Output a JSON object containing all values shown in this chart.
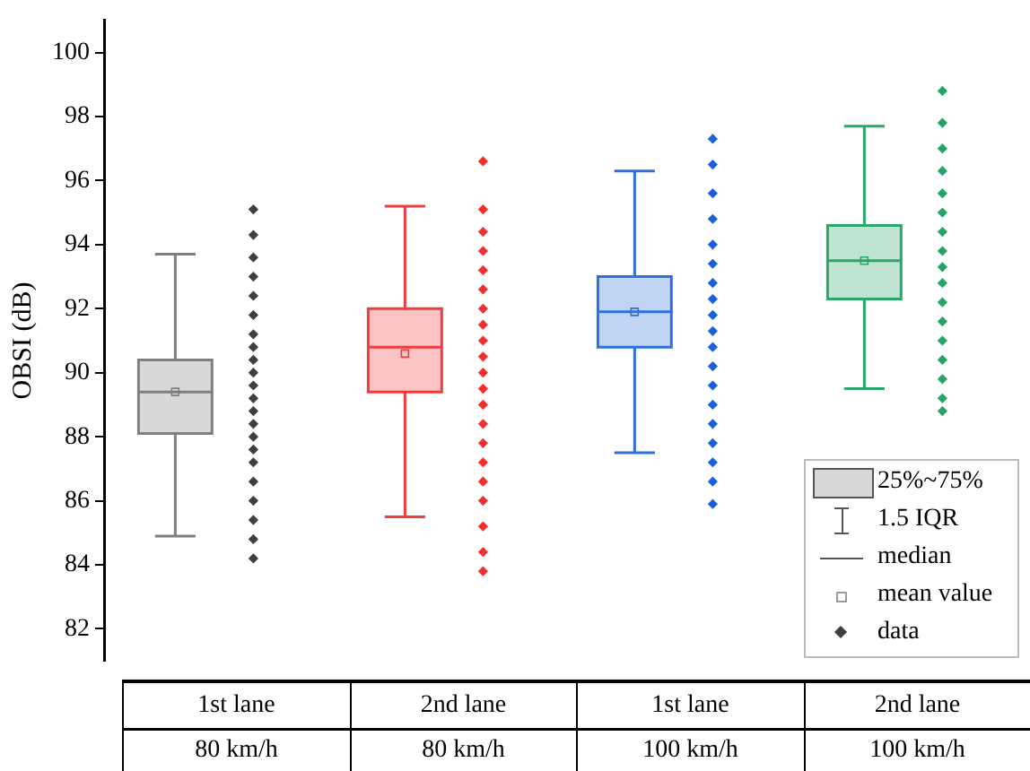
{
  "chart_data": {
    "type": "box",
    "ylabel": "OBSI (dB)",
    "categories": [
      "1st lane\n80 km/h",
      "2nd lane\n80 km/h",
      "1st lane\n100 km/h",
      "2nd lane\n100 km/h"
    ],
    "ylim": [
      81,
      101
    ],
    "yticks": [
      82,
      84,
      86,
      88,
      90,
      92,
      94,
      96,
      98,
      100
    ],
    "legend": "bottom right",
    "marker": "diamond",
    "grid": false,
    "annotations": [
      "1.5 IQR",
      "median",
      "mean value"
    ],
    "series": [
      {
        "type": "box",
        "name": "25%~75%",
        "colors": [
          "#7f7f7f",
          "#f03c3c",
          "#2f6fd9",
          "#2aa86a"
        ],
        "boxes": [
          {
            "low": 84.9,
            "q1": 88.1,
            "median": 89.4,
            "q3": 90.4,
            "high": 93.7,
            "mean": 89.4
          },
          {
            "low": 85.5,
            "q1": 89.4,
            "median": 90.8,
            "q3": 92.0,
            "high": 95.2,
            "mean": 90.6
          },
          {
            "low": 87.5,
            "q1": 90.8,
            "median": 91.9,
            "q3": 93.0,
            "high": 96.3,
            "mean": 91.9
          },
          {
            "low": 89.5,
            "q1": 92.3,
            "median": 93.5,
            "q3": 94.6,
            "high": 97.7,
            "mean": 93.5
          }
        ]
      },
      {
        "type": "scatter",
        "name": "data",
        "color": "#3f3f3f",
        "x": [
          "1st lane\n80 km/h",
          "1st lane\n80 km/h",
          "1st lane\n80 km/h",
          "1st lane\n80 km/h",
          "1st lane\n80 km/h",
          "1st lane\n80 km/h",
          "1st lane\n80 km/h",
          "1st lane\n80 km/h",
          "1st lane\n80 km/h",
          "1st lane\n80 km/h",
          "1st lane\n80 km/h",
          "1st lane\n80 km/h",
          "1st lane\n80 km/h",
          "1st lane\n80 km/h",
          "1st lane\n80 km/h",
          "1st lane\n80 km/h",
          "1st lane\n80 km/h",
          "1st lane\n80 km/h",
          "1st lane\n80 km/h",
          "1st lane\n80 km/h",
          "1st lane\n80 km/h",
          "1st lane\n80 km/h"
        ],
        "values": [
          95.1,
          94.3,
          93.6,
          93.0,
          92.4,
          91.8,
          91.2,
          90.8,
          90.4,
          90.0,
          89.6,
          89.2,
          88.8,
          88.4,
          88.0,
          87.6,
          87.2,
          86.6,
          86.0,
          85.4,
          84.8,
          84.2
        ]
      },
      {
        "type": "scatter",
        "color": "#f03030",
        "x": [
          "2nd lane\n80 km/h",
          "2nd lane\n80 km/h",
          "2nd lane\n80 km/h",
          "2nd lane\n80 km/h",
          "2nd lane\n80 km/h",
          "2nd lane\n80 km/h",
          "2nd lane\n80 km/h",
          "2nd lane\n80 km/h",
          "2nd lane\n80 km/h",
          "2nd lane\n80 km/h",
          "2nd lane\n80 km/h",
          "2nd lane\n80 km/h",
          "2nd lane\n80 km/h",
          "2nd lane\n80 km/h",
          "2nd lane\n80 km/h",
          "2nd lane\n80 km/h",
          "2nd lane\n80 km/h",
          "2nd lane\n80 km/h",
          "2nd lane\n80 km/h",
          "2nd lane\n80 km/h",
          "2nd lane\n80 km/h"
        ],
        "values": [
          96.6,
          95.1,
          94.4,
          93.8,
          93.2,
          92.6,
          92.0,
          91.5,
          91.0,
          90.5,
          90.0,
          89.5,
          89.0,
          88.4,
          87.8,
          87.2,
          86.6,
          86.0,
          85.2,
          84.4,
          83.8
        ]
      },
      {
        "type": "scatter",
        "color": "#1a5fdc",
        "x": [
          "1st lane\n100 km/h",
          "1st lane\n100 km/h",
          "1st lane\n100 km/h",
          "1st lane\n100 km/h",
          "1st lane\n100 km/h",
          "1st lane\n100 km/h",
          "1st lane\n100 km/h",
          "1st lane\n100 km/h",
          "1st lane\n100 km/h",
          "1st lane\n100 km/h",
          "1st lane\n100 km/h",
          "1st lane\n100 km/h",
          "1st lane\n100 km/h",
          "1st lane\n100 km/h",
          "1st lane\n100 km/h",
          "1st lane\n100 km/h",
          "1st lane\n100 km/h",
          "1st lane\n100 km/h",
          "1st lane\n100 km/h"
        ],
        "values": [
          97.3,
          96.5,
          95.6,
          94.8,
          94.0,
          93.4,
          92.8,
          92.3,
          91.8,
          91.3,
          90.8,
          90.2,
          89.6,
          89.0,
          88.4,
          87.8,
          87.2,
          86.6,
          85.9
        ]
      },
      {
        "type": "scatter",
        "color": "#25a565",
        "x": [
          "2nd lane\n100 km/h",
          "2nd lane\n100 km/h",
          "2nd lane\n100 km/h",
          "2nd lane\n100 km/h",
          "2nd lane\n100 km/h",
          "2nd lane\n100 km/h",
          "2nd lane\n100 km/h",
          "2nd lane\n100 km/h",
          "2nd lane\n100 km/h",
          "2nd lane\n100 km/h",
          "2nd lane\n100 km/h",
          "2nd lane\n100 km/h",
          "2nd lane\n100 km/h",
          "2nd lane\n100 km/h",
          "2nd lane\n100 km/h",
          "2nd lane\n100 km/h",
          "2nd lane\n100 km/h"
        ],
        "values": [
          98.8,
          97.8,
          97.0,
          96.3,
          95.6,
          95.0,
          94.4,
          93.8,
          93.3,
          92.8,
          92.2,
          91.6,
          91.0,
          90.4,
          89.8,
          89.2,
          88.8
        ]
      }
    ]
  }
}
